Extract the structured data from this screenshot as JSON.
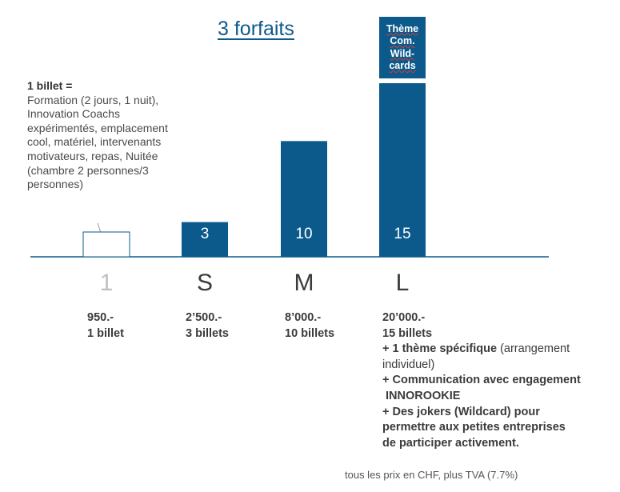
{
  "title": "3 forfaits",
  "note": {
    "head": "1 billet =",
    "body": "Formation (2 jours, 1 nuit), Innovation Coachs expérimentés, emplacement cool, matériel, intervenants motivateurs, repas, Nuitée (chambre 2 personnes/3 personnes)"
  },
  "theme_box": [
    "Thème",
    "Com.",
    "Wild-",
    "cards"
  ],
  "chart_data": {
    "type": "bar",
    "categories": [
      "1",
      "S",
      "M",
      "L"
    ],
    "values": [
      1,
      3,
      10,
      15
    ],
    "value_labels": [
      "",
      "3",
      "10",
      "15"
    ],
    "ylim": [
      0,
      15
    ],
    "grid": false,
    "colors": {
      "bar": "#0b5a8b",
      "outline_bar": "#0b5a8b",
      "baseline": "#0b5a8b",
      "muted_category": "#bfbfbf"
    }
  },
  "prices": [
    {
      "lines": [
        "950.-",
        "1 billet"
      ]
    },
    {
      "lines": [
        "2’500.-",
        "3 billets"
      ]
    },
    {
      "lines": [
        "8’000.-",
        "10 billets"
      ]
    },
    {
      "lines": [
        "20’000.-",
        "15 billets"
      ],
      "extras": [
        {
          "bold": "+ 1 thème spécifique",
          "normal": " (arrangement"
        },
        {
          "bold": "",
          "normal": "individuel)"
        },
        {
          "bold": "+ Communication avec engagement",
          "normal": ""
        },
        {
          "bold": " INNOROOKIE",
          "normal": ""
        },
        {
          "bold": "+ Des jokers (Wildcard) pour",
          "normal": ""
        },
        {
          "bold": "permettre aux petites entreprises",
          "normal": ""
        },
        {
          "bold": "de participer activement.",
          "normal": ""
        }
      ]
    }
  ],
  "footnote": "tous les prix en CHF, plus TVA (7.7%)"
}
